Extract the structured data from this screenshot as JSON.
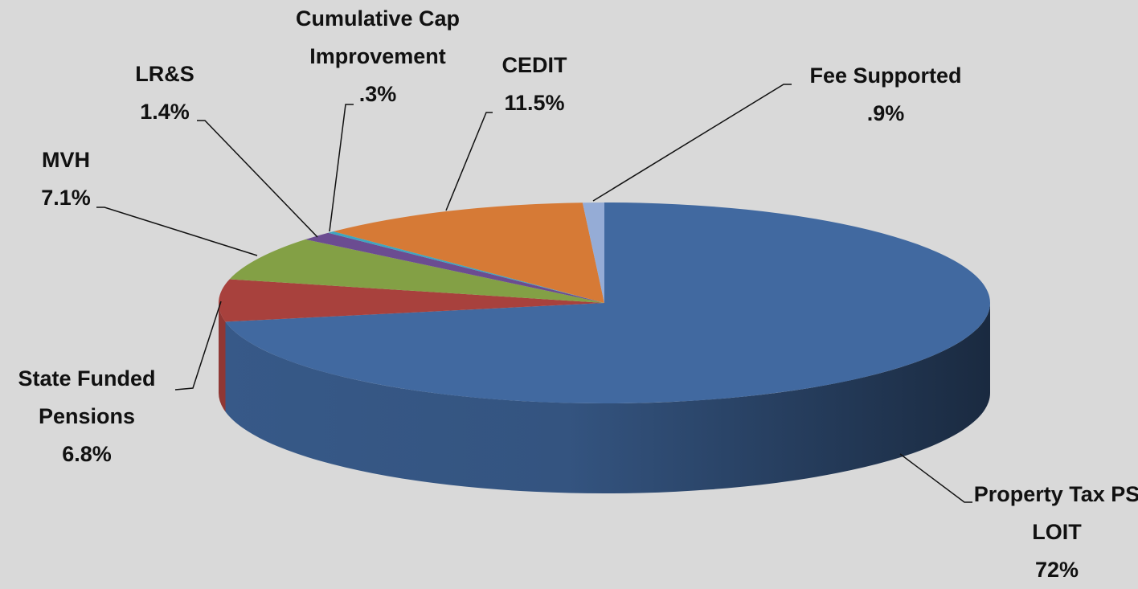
{
  "chart_data": {
    "type": "pie",
    "categories": [
      "Property Tax PS LOIT",
      "State Funded Pensions",
      "MVH",
      "LR&S",
      "Cumulative Cap Improvement",
      "CEDIT",
      "Fee Supported"
    ],
    "values": [
      72,
      6.8,
      7.1,
      1.4,
      0.3,
      11.5,
      0.9
    ],
    "value_labels": [
      "72%",
      "6.8%",
      "7.1%",
      "1.4%",
      ".3%",
      "11.5%",
      ".9%"
    ],
    "colors": [
      "#4169a0",
      "#a8413d",
      "#83a045",
      "#6b4c91",
      "#3fa5c0",
      "#d67a36",
      "#95acd6"
    ]
  }
}
